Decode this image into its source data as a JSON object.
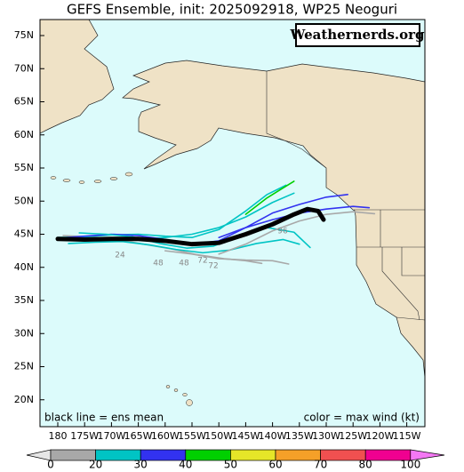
{
  "title": "GEFS Ensemble, init: 2025092918, WP25 Neoguri",
  "watermark": "Weathernerds.org",
  "legend_left": "black line = ens mean",
  "legend_right": "color = max wind (kt)",
  "lat_ticks": [
    {
      "value": 75,
      "label": "75N"
    },
    {
      "value": 70,
      "label": "70N"
    },
    {
      "value": 65,
      "label": "65N"
    },
    {
      "value": 60,
      "label": "60N"
    },
    {
      "value": 55,
      "label": "55N"
    },
    {
      "value": 50,
      "label": "50N"
    },
    {
      "value": 45,
      "label": "45N"
    },
    {
      "value": 40,
      "label": "40N"
    },
    {
      "value": 35,
      "label": "35N"
    },
    {
      "value": 30,
      "label": "30N"
    },
    {
      "value": 25,
      "label": "25N"
    },
    {
      "value": 20,
      "label": "20N"
    }
  ],
  "lon_ticks": [
    {
      "value": -180,
      "label": "180"
    },
    {
      "value": -175,
      "label": "175W"
    },
    {
      "value": -170,
      "label": "170W"
    },
    {
      "value": -165,
      "label": "165W"
    },
    {
      "value": -160,
      "label": "160W"
    },
    {
      "value": -155,
      "label": "155W"
    },
    {
      "value": -150,
      "label": "150W"
    },
    {
      "value": -145,
      "label": "145W"
    },
    {
      "value": -140,
      "label": "140W"
    },
    {
      "value": -135,
      "label": "135W"
    },
    {
      "value": -130,
      "label": "130W"
    },
    {
      "value": -125,
      "label": "125W"
    },
    {
      "value": -120,
      "label": "120W"
    },
    {
      "value": -115,
      "label": "115W"
    }
  ],
  "colorbar": {
    "ticks": [
      0,
      20,
      30,
      40,
      50,
      60,
      70,
      80,
      100
    ],
    "colors": [
      "#a8a8a8",
      "#00c4c4",
      "#3232f0",
      "#00d000",
      "#e6e628",
      "#f5a028",
      "#f05050",
      "#f00090",
      "#f478f4"
    ]
  },
  "hour_labels": [
    "24",
    "48",
    "48",
    "72",
    "72",
    "96"
  ],
  "tracks": [
    {
      "color": "#a8a8a8",
      "lon": [
        -179,
        -174,
        -169,
        -164,
        -159,
        -154,
        -149,
        -145,
        -142
      ],
      "lat": [
        44.8,
        44.6,
        44.2,
        43.5,
        42.8,
        41.9,
        41.3,
        41.0,
        40.6
      ]
    },
    {
      "color": "#00c4c4",
      "lon": [
        -180,
        -175,
        -170,
        -165,
        -160,
        -155,
        -150,
        -145,
        -141,
        -137.5
      ],
      "lat": [
        44.5,
        44.6,
        44.9,
        45.0,
        44.7,
        44.5,
        45.7,
        48.5,
        51.0,
        52.4
      ]
    },
    {
      "color": "#00c4c4",
      "lon": [
        -180,
        -175,
        -170,
        -165,
        -160,
        -155,
        -150,
        -145,
        -140,
        -136
      ],
      "lat": [
        44.2,
        44.1,
        44.0,
        44.2,
        44.5,
        45.0,
        46.0,
        47.6,
        49.8,
        51.2
      ]
    },
    {
      "color": "#00d000",
      "lon": [
        -145,
        -141,
        -138,
        -136
      ],
      "lat": [
        48.0,
        50.5,
        52.0,
        53.0
      ]
    },
    {
      "color": "#3232f0",
      "lon": [
        -180,
        -175,
        -170,
        -165,
        -160,
        -155,
        -150,
        -145,
        -140,
        -135,
        -130,
        -126
      ],
      "lat": [
        44.4,
        44.7,
        45.0,
        44.8,
        44.2,
        43.5,
        44.0,
        46.0,
        48.2,
        49.5,
        50.6,
        51.0
      ]
    },
    {
      "color": "#3232f0",
      "lon": [
        -150,
        -145,
        -140,
        -135,
        -130,
        -125,
        -122
      ],
      "lat": [
        44.5,
        46.0,
        47.2,
        48.2,
        48.8,
        49.2,
        49.0
      ]
    },
    {
      "color": "#00c4c4",
      "lon": [
        -178,
        -173,
        -168,
        -163,
        -158,
        -153,
        -148,
        -143,
        -138,
        -135
      ],
      "lat": [
        43.6,
        43.8,
        43.9,
        43.4,
        42.7,
        42.2,
        42.6,
        43.6,
        44.2,
        43.5
      ]
    },
    {
      "color": "#00c4c4",
      "lon": [
        -176,
        -171,
        -166,
        -161,
        -156,
        -151,
        -146,
        -141,
        -136,
        -133
      ],
      "lat": [
        45.2,
        45.0,
        44.6,
        43.6,
        42.9,
        43.2,
        44.8,
        46.0,
        45.3,
        43.0
      ]
    },
    {
      "color": "#a8a8a8",
      "lon": [
        -150,
        -145,
        -140,
        -135,
        -130,
        -125,
        -121
      ],
      "lat": [
        42.0,
        43.5,
        45.5,
        47.0,
        48.0,
        48.4,
        48.1
      ]
    },
    {
      "color": "#a8a8a8",
      "lon": [
        -160,
        -155,
        -150,
        -145,
        -140,
        -137
      ],
      "lat": [
        42.5,
        42.0,
        41.3,
        41.1,
        41.0,
        40.5
      ]
    },
    {
      "color": "#000000",
      "lon": [
        -180,
        -175,
        -170,
        -165,
        -160,
        -155,
        -150,
        -145,
        -140,
        -136,
        -133.5,
        -131.5,
        -130.5
      ],
      "lat": [
        44.3,
        44.2,
        44.3,
        44.3,
        44.0,
        43.5,
        43.7,
        45.0,
        46.5,
        48.0,
        48.8,
        48.5,
        47.2
      ]
    }
  ]
}
